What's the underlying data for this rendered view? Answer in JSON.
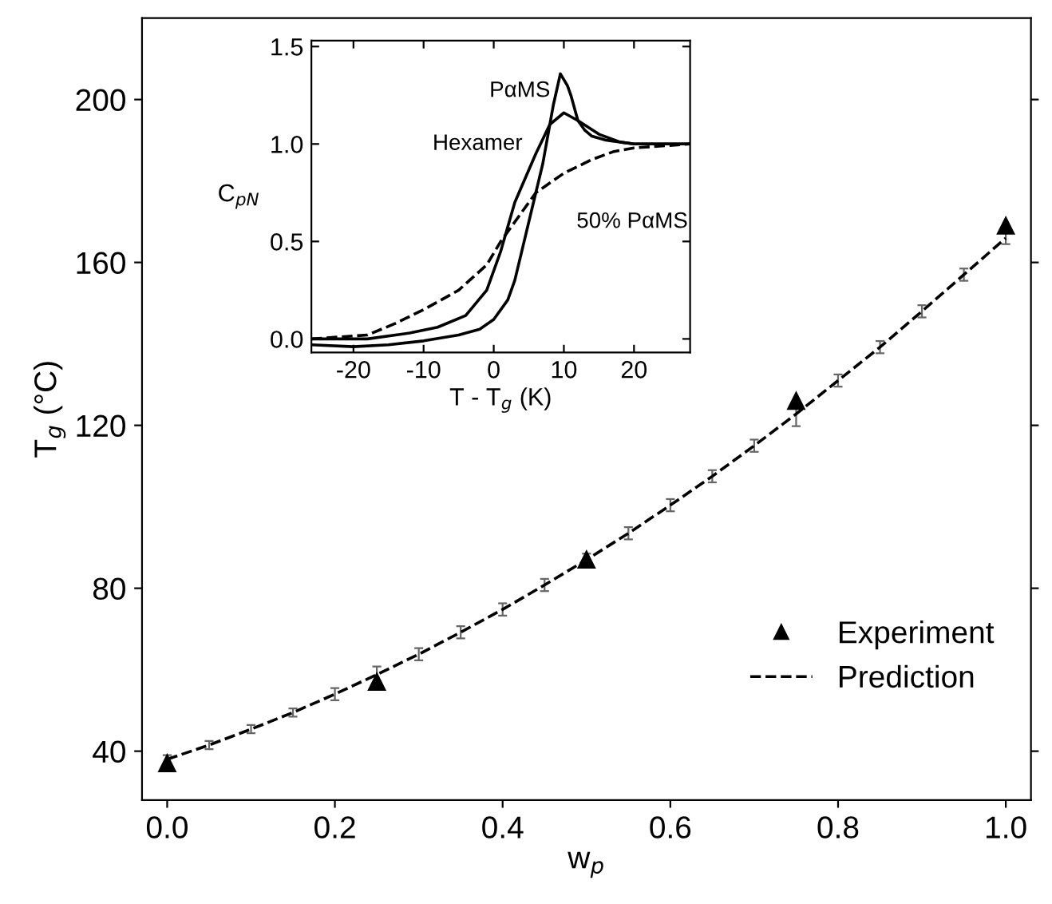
{
  "chart_data": [
    {
      "type": "line",
      "xlabel": "w$_{p}$",
      "ylabel": "T$_{g}$ (°C)",
      "xlim": [
        -0.03,
        1.03
      ],
      "ylim": [
        28,
        220
      ],
      "xticks": [
        {
          "value": 0,
          "label": "0.0"
        },
        0.2,
        0.4,
        0.6,
        0.8,
        {
          "value": 1,
          "label": "1.0"
        }
      ],
      "yticks": [
        40,
        80,
        120,
        160,
        200
      ],
      "grid": false,
      "legend": "bottom right",
      "series": [
        {
          "name": "Experiment",
          "type": "scatter",
          "marker": "triangle",
          "color": "#000000",
          "x": [
            0,
            0.25,
            0.5,
            0.75,
            1.0
          ],
          "values": [
            37,
            57,
            87,
            126,
            169
          ]
        },
        {
          "name": "Prediction",
          "type": "line",
          "marker": "none",
          "line_style": "dashed",
          "color": "#000000",
          "x": [
            0,
            0.05,
            0.1,
            0.15,
            0.2,
            0.25,
            0.3,
            0.35,
            0.4,
            0.45,
            0.5,
            0.55,
            0.6,
            0.65,
            0.7,
            0.75,
            0.8,
            0.85,
            0.9,
            0.95,
            1.0
          ],
          "values": [
            38,
            41.5,
            45.4,
            49.5,
            54,
            58.8,
            63.8,
            69.2,
            74.8,
            80.8,
            87,
            93.5,
            100.4,
            107.5,
            115,
            122.8,
            131,
            139.2,
            148,
            157,
            166
          ],
          "errors": [
            1,
            1,
            1,
            1,
            1.5,
            2,
            1.5,
            1.5,
            1.5,
            1.5,
            1.5,
            1.5,
            1.5,
            1.5,
            1.5,
            3,
            1.5,
            1.5,
            1.5,
            1.5,
            1.5
          ]
        }
      ]
    },
    {
      "type": "line",
      "xlabel": "T - T$_{g}$ (K)",
      "ylabel": "C$_{pN}$",
      "xlim": [
        -26,
        28
      ],
      "ylim": [
        -0.07,
        1.53
      ],
      "xticks": [
        -20,
        -10,
        0,
        10,
        20
      ],
      "yticks": [
        {
          "value": 0,
          "label": "0.0"
        },
        0.5,
        {
          "value": 1,
          "label": "1.0"
        },
        1.5
      ],
      "grid": false,
      "series": [
        {
          "name": "PαMS",
          "color": "#000000",
          "line_style": "solid",
          "x": [
            -26,
            -20,
            -15,
            -10,
            -5,
            -2,
            0,
            2,
            3,
            4,
            5,
            6,
            7,
            8,
            8.5,
            9.5,
            10.5,
            11,
            12,
            13,
            14,
            16,
            20,
            24,
            28
          ],
          "values": [
            -0.03,
            -0.04,
            -0.03,
            -0.01,
            0.02,
            0.05,
            0.1,
            0.2,
            0.3,
            0.45,
            0.6,
            0.75,
            0.9,
            1.1,
            1.2,
            1.36,
            1.3,
            1.25,
            1.12,
            1.07,
            1.04,
            1.02,
            1.0,
            1.0,
            1.0
          ]
        },
        {
          "name": "Hexamer",
          "color": "#000000",
          "line_style": "solid",
          "x": [
            -26,
            -18,
            -12,
            -8,
            -4,
            -1,
            1,
            3,
            6,
            8,
            10,
            12,
            15,
            18,
            20,
            28
          ],
          "values": [
            0.0,
            0.0,
            0.03,
            0.06,
            0.12,
            0.25,
            0.45,
            0.7,
            0.95,
            1.1,
            1.16,
            1.12,
            1.05,
            1.01,
            1.0,
            1.0
          ]
        },
        {
          "name": "50% PαMS",
          "color": "#000000",
          "line_style": "dashed",
          "x": [
            -26,
            -18,
            -14,
            -10,
            -5,
            -1,
            1,
            4,
            6,
            10,
            14,
            17,
            20,
            28
          ],
          "values": [
            0.0,
            0.02,
            0.08,
            0.15,
            0.25,
            0.38,
            0.5,
            0.65,
            0.75,
            0.85,
            0.92,
            0.96,
            0.98,
            1.0
          ]
        }
      ]
    }
  ]
}
